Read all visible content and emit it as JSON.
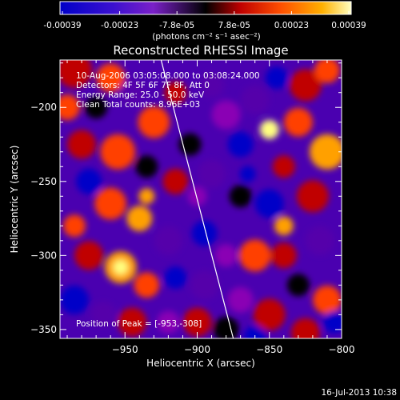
{
  "colorbar": {
    "tick_labels": [
      "-0.00039",
      "-0.00023",
      "-7.8e-05",
      "7.8e-05",
      "0.00023",
      "0.00039"
    ],
    "range": [
      -0.00039,
      0.00039
    ],
    "unit_label": "(photons cm⁻² s⁻¹ asec⁻²)"
  },
  "chart_data": {
    "type": "heatmap",
    "title": "Reconstructed RHESSI Image",
    "xlabel": "Heliocentric X (arcsec)",
    "ylabel": "Heliocentric Y (arcsec)",
    "xlim": [
      -995,
      -800
    ],
    "ylim": [
      -356,
      -168
    ],
    "x_ticks": [
      -950,
      -900,
      -850,
      -800
    ],
    "y_ticks": [
      -200,
      -250,
      -300,
      -350
    ],
    "x_tick_labels": [
      "−950",
      "−900",
      "−850",
      "−800"
    ],
    "y_tick_labels": [
      "−200",
      "−250",
      "−300",
      "−350"
    ],
    "annotations": [
      "10-Aug-2006 03:05:08.000 to 03:08:24.000",
      "Detectors: 4F 5F 6F 7F 8F, Att 0",
      "Energy Range: 25.0 - 50.0 keV",
      "Clean    Total counts: 8.96E+03"
    ],
    "peak_label": "Position of Peak = [-953,-308]",
    "peak_position": [
      -953,
      -308
    ],
    "limb_line": [
      [
        -925,
        -168
      ],
      [
        -875,
        -356
      ]
    ],
    "colormap": [
      "#0000c8",
      "#5500aa",
      "#8a00b4",
      "#000000",
      "#c00000",
      "#ff4000",
      "#ffa000",
      "#ffff80"
    ]
  },
  "footer": {
    "timestamp": "16-Jul-2013 10:38"
  }
}
